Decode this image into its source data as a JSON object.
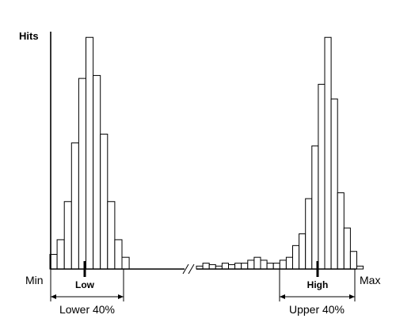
{
  "chart_data": {
    "type": "bar",
    "ylabel": "Hits",
    "x_min_label": "Min",
    "x_max_label": "Max",
    "axis_break": true,
    "series": [
      {
        "values": [
          5,
          10,
          23,
          43,
          65,
          79,
          66,
          46,
          23,
          10,
          4
        ]
      },
      {
        "values": [
          1,
          2,
          1.5,
          1,
          2,
          1.5,
          2,
          2,
          3,
          4,
          3,
          2,
          2,
          3,
          4,
          8,
          12,
          24,
          42,
          63,
          79,
          58,
          26,
          14,
          6,
          1
        ]
      }
    ],
    "markers": [
      {
        "label": "Low",
        "bin": 5.6
      },
      {
        "label": "High",
        "bin": 21.6
      }
    ],
    "spans": [
      {
        "label": "Lower 40%"
      },
      {
        "label": "Upper 40%"
      }
    ],
    "ylim": [
      0,
      85
    ]
  }
}
